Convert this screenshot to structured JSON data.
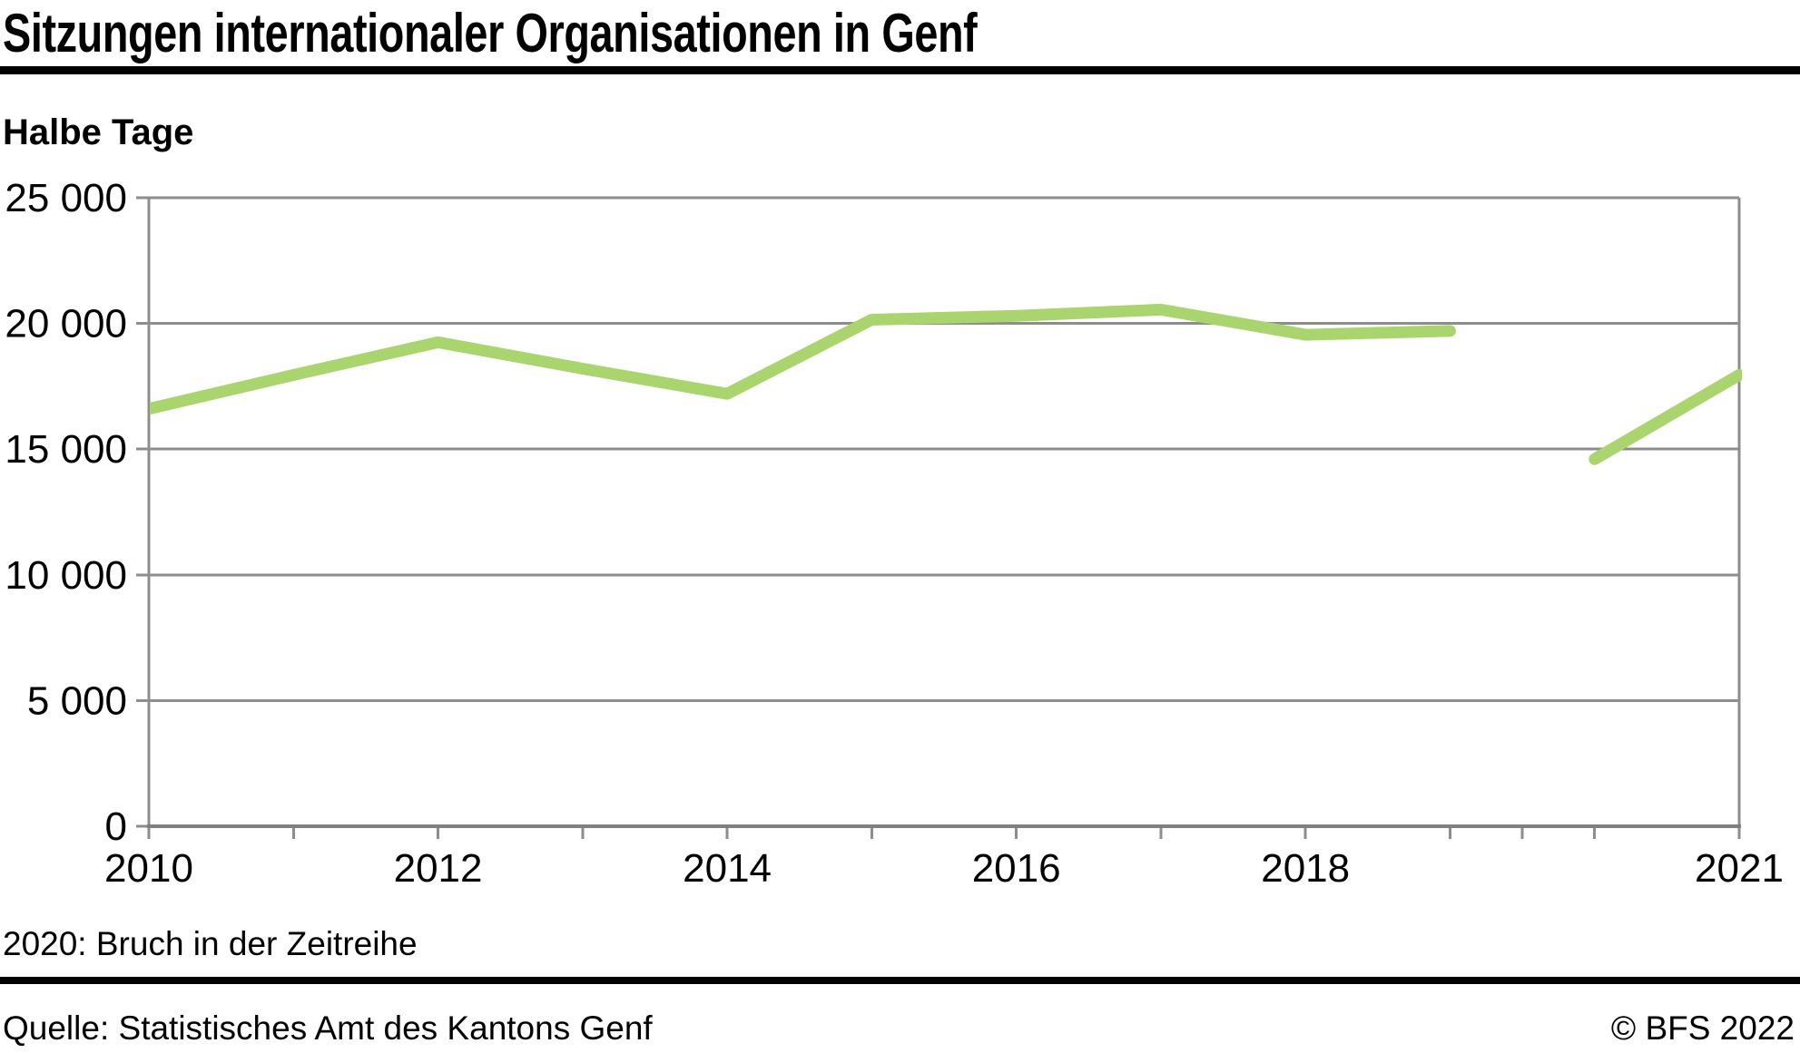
{
  "header": {
    "title": "Sitzungen internationaler Organisationen in Genf",
    "unit_label": "Halbe Tage"
  },
  "footnote": "2020: Bruch in der Zeitreihe",
  "footer": {
    "source": "Quelle: Statistisches Amt des Kantons Genf",
    "copyright": "© BFS 2022"
  },
  "colors": {
    "line": "#aad56e",
    "grid": "#8d8d8d",
    "axis": "#7f7f7f",
    "rule": "#000000",
    "text": "#000000",
    "background": "#ffffff"
  },
  "chart_data": {
    "type": "line",
    "title": "Sitzungen internationaler Organisationen in Genf",
    "xlabel": "",
    "ylabel": "Halbe Tage",
    "xlim": [
      2010,
      2021
    ],
    "ylim": [
      0,
      25000
    ],
    "grid": true,
    "legend": "none",
    "y_ticks": [
      0,
      5000,
      10000,
      15000,
      20000,
      25000
    ],
    "y_tick_labels": [
      "0",
      "5 000",
      "10 000",
      "15 000",
      "20 000",
      "25 000"
    ],
    "x_minor_ticks": [
      2010,
      2011,
      2012,
      2013,
      2014,
      2015,
      2016,
      2017,
      2018,
      2019,
      2020,
      2021
    ],
    "break_tick_x": 2019.5,
    "x_tick_labels": [
      {
        "year": 2010,
        "label": "2010"
      },
      {
        "year": 2012,
        "label": "2012"
      },
      {
        "year": 2014,
        "label": "2014"
      },
      {
        "year": 2016,
        "label": "2016"
      },
      {
        "year": 2018,
        "label": "2018"
      },
      {
        "year": 2021,
        "label": "2021"
      }
    ],
    "series": [
      {
        "name": "Sitzungen internationaler Organisationen (Halbe Tage)",
        "color": "#aad56e",
        "segments": [
          {
            "years": [
              2010,
              2011,
              2012,
              2013,
              2014,
              2015,
              2016,
              2017,
              2018,
              2019
            ],
            "values": [
              16600,
              17950,
              19250,
              18200,
              17200,
              20150,
              20300,
              20550,
              19550,
              19700
            ]
          },
          {
            "years": [
              2020,
              2021
            ],
            "values": [
              14600,
              17950
            ]
          }
        ]
      }
    ],
    "series_break": {
      "between_years": [
        2019,
        2020
      ],
      "note": "2020: Bruch in der Zeitreihe"
    }
  }
}
